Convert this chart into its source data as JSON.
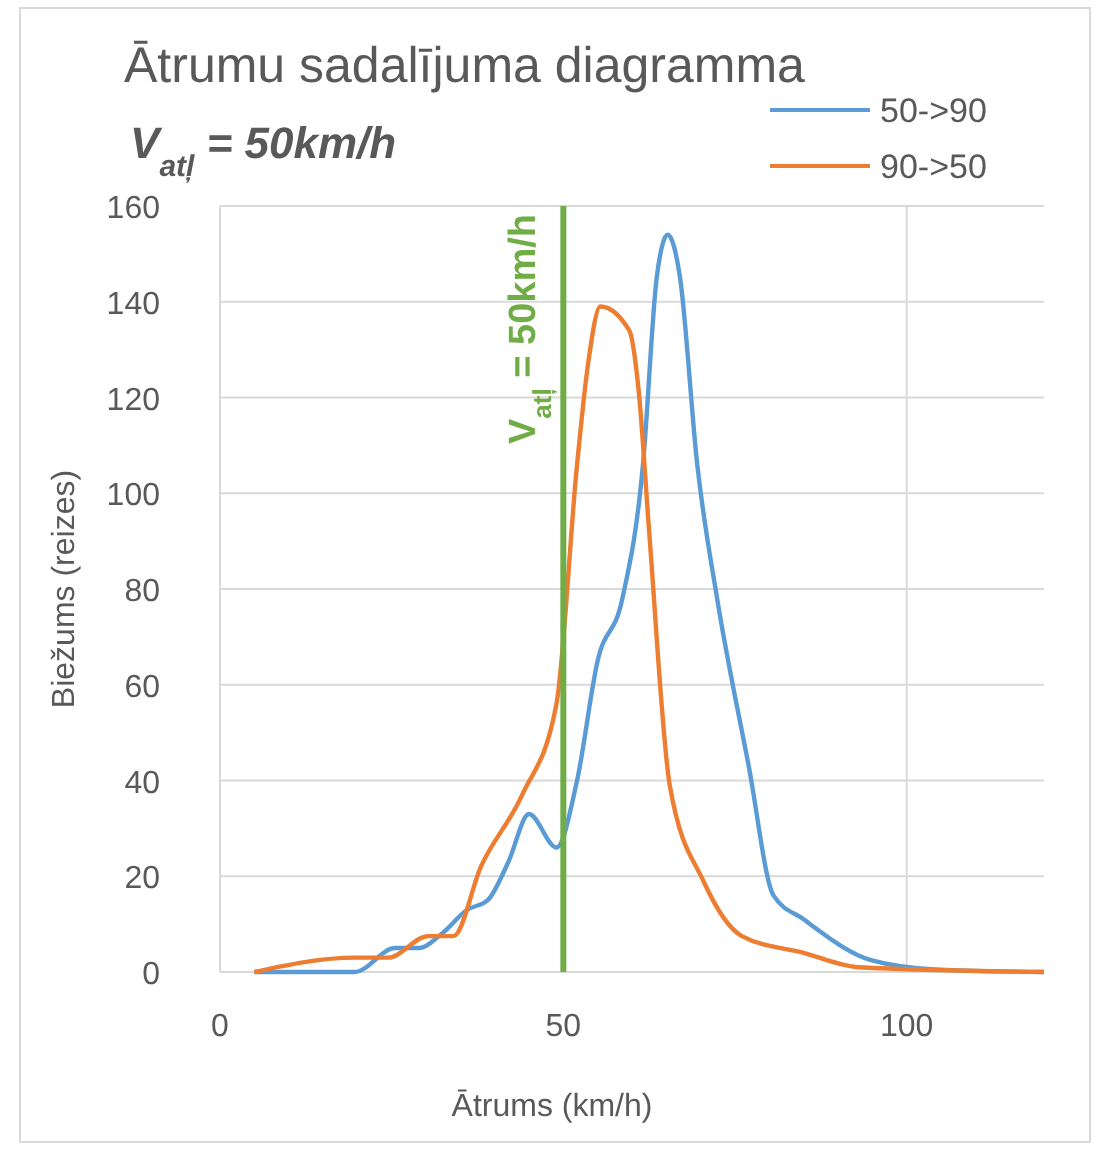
{
  "chart_data": {
    "type": "line",
    "title": "Ātrumu sadalījuma diagramma",
    "subtitle": "V$_{atļ}$ = 50km/h",
    "xlabel": "Ātrums (km/h)",
    "ylabel": "Biežums (reizes)",
    "xlim": [
      0,
      120
    ],
    "xticks": [
      0,
      50,
      100
    ],
    "ylim": [
      0,
      160
    ],
    "yticks": [
      0,
      20,
      40,
      60,
      80,
      100,
      120,
      140,
      160
    ],
    "grid": true,
    "legend": "top right",
    "marker": "none",
    "line_style": "solid",
    "ref_lines": [
      {
        "axis": "x",
        "value": 50,
        "label": "V$_{atļ}$ = 50km/h",
        "color": "#70ad47"
      }
    ],
    "series": [
      {
        "name": "50->90",
        "color": "#5b9bd5",
        "x": [
          5,
          19.6,
          25.5,
          29,
          32.3,
          36,
          39,
          42,
          45,
          49,
          52,
          55,
          58.6,
          61.6,
          63.6,
          65.2,
          67,
          69.5,
          72.4,
          77,
          80.6,
          85,
          94.8,
          104.6,
          120
        ],
        "values": [
          0,
          0,
          5,
          5,
          8,
          13,
          15,
          23,
          33,
          26,
          40,
          65,
          78,
          106,
          145,
          154,
          145,
          106,
          78,
          43,
          16,
          11,
          2.5,
          0.5,
          0
        ]
      },
      {
        "name": "90->50",
        "color": "#ed7d31",
        "x": [
          5,
          19.6,
          24.5,
          30.3,
          34,
          38,
          44,
          49,
          52,
          53.6,
          55.4,
          59.6,
          61,
          62.5,
          65.5,
          70.4,
          76,
          85,
          93,
          120
        ],
        "values": [
          0,
          3,
          3,
          7.5,
          7.5,
          22,
          37,
          56,
          106,
          127,
          139,
          134,
          121,
          92,
          39,
          19,
          7.5,
          4,
          1,
          0
        ]
      }
    ]
  }
}
